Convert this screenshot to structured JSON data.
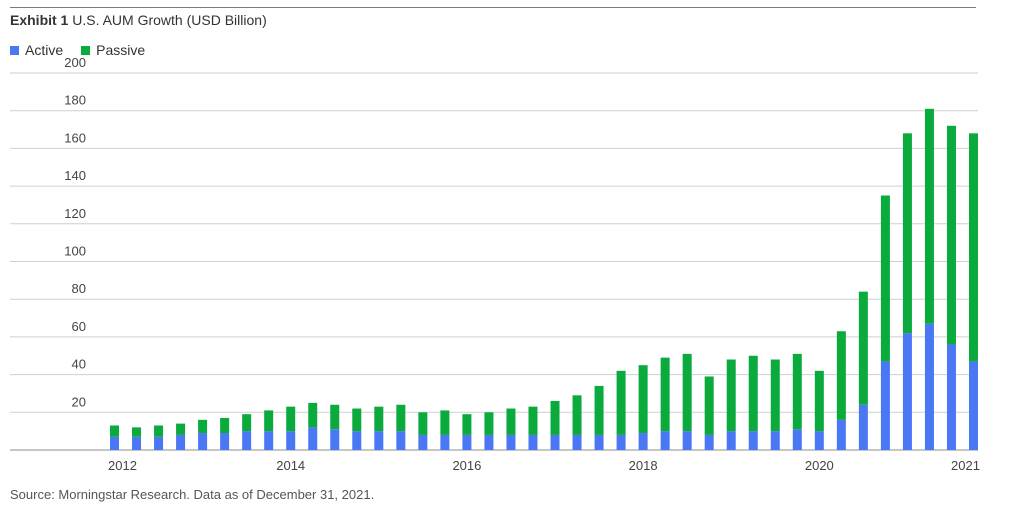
{
  "title": {
    "exhibit": "Exhibit 1",
    "text": "U.S. AUM Growth (USD Billion)"
  },
  "source": "Source: Morningstar Research. Data as of December 31, 2021.",
  "colors": {
    "active": "#4a78f5",
    "passive": "#0aaa3c",
    "grid": "#cfcfcf",
    "axis": "#8c8c8c"
  },
  "chart_data": {
    "type": "bar",
    "stacked": true,
    "title": "U.S. AUM Growth (USD Billion)",
    "ylim": [
      0,
      200
    ],
    "yticks": [
      20,
      40,
      60,
      80,
      100,
      120,
      140,
      160,
      180,
      200
    ],
    "xtick_labels": [
      "2012",
      "2014",
      "2016",
      "2018",
      "2020",
      "2021"
    ],
    "grid": true,
    "legend_position": "top-left",
    "categories": [
      "2012Q1",
      "2012Q2",
      "2012Q3",
      "2012Q4",
      "2013Q1",
      "2013Q2",
      "2013Q3",
      "2013Q4",
      "2014Q1",
      "2014Q2",
      "2014Q3",
      "2014Q4",
      "2015Q1",
      "2015Q2",
      "2015Q3",
      "2015Q4",
      "2016Q1",
      "2016Q2",
      "2016Q3",
      "2016Q4",
      "2017Q1",
      "2017Q2",
      "2017Q3",
      "2017Q4",
      "2018Q1",
      "2018Q2",
      "2018Q3",
      "2018Q4",
      "2019Q1",
      "2019Q2",
      "2019Q3",
      "2019Q4",
      "2020Q1",
      "2020Q2",
      "2020Q3",
      "2020Q4",
      "2021Q1",
      "2021Q2",
      "2021Q3",
      "2021Q4"
    ],
    "series": [
      {
        "name": "Active",
        "color": "#4a78f5",
        "values": [
          7,
          7,
          7,
          8,
          9,
          9,
          10,
          10,
          10,
          12,
          11,
          10,
          10,
          10,
          8,
          8,
          8,
          8,
          8,
          8,
          8,
          8,
          8,
          8,
          9,
          10,
          10,
          8,
          10,
          10,
          10,
          11,
          10,
          16,
          24,
          47,
          62,
          67,
          56,
          47
        ]
      },
      {
        "name": "Passive",
        "color": "#0aaa3c",
        "values": [
          6,
          5,
          6,
          6,
          7,
          8,
          9,
          11,
          13,
          13,
          13,
          12,
          13,
          14,
          12,
          13,
          11,
          12,
          14,
          15,
          18,
          21,
          26,
          34,
          36,
          39,
          41,
          31,
          38,
          40,
          38,
          40,
          32,
          47,
          60,
          88,
          106,
          114,
          116,
          121
        ]
      }
    ]
  }
}
